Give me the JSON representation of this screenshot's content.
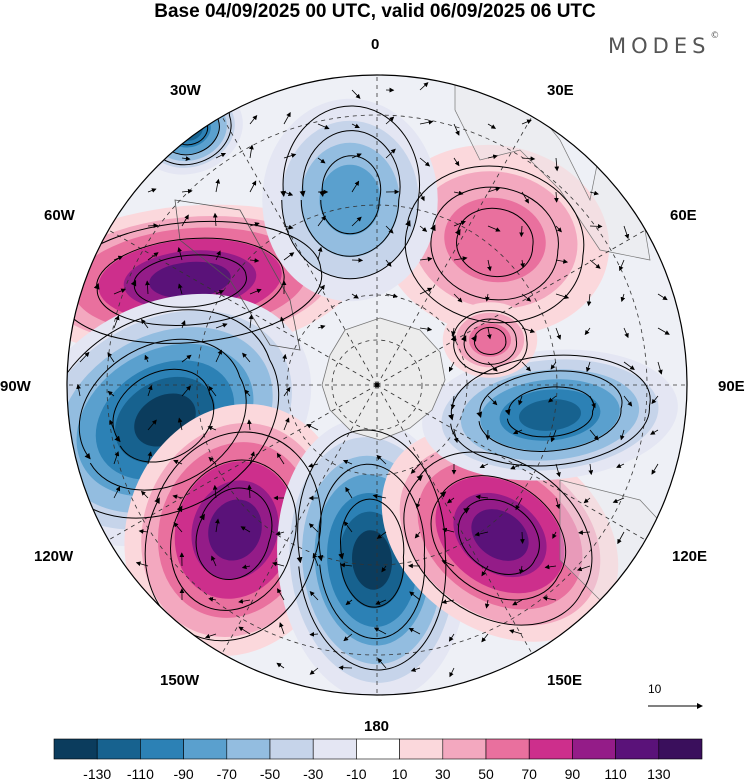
{
  "title": "Base 04/09/2025 00 UTC, valid 06/09/2025 06 UTC",
  "brand": {
    "name": "MODES",
    "mark": "©"
  },
  "longitude_labels": {
    "lon_0": "0",
    "lon_30e": "30E",
    "lon_60e": "60E",
    "lon_90e": "90E",
    "lon_120e": "120E",
    "lon_150e": "150E",
    "lon_180": "180",
    "lon_150w": "150W",
    "lon_120w": "120W",
    "lon_90w": "90W",
    "lon_60w": "60W",
    "lon_30w": "30W"
  },
  "vector_reference": {
    "label": "10"
  },
  "colorbar": {
    "labels": [
      "-130",
      "-110",
      "-90",
      "-70",
      "-50",
      "-30",
      "-10",
      "10",
      "30",
      "50",
      "70",
      "90",
      "110",
      "130"
    ],
    "colors": [
      "#0b3c5d",
      "#17628f",
      "#2c81b5",
      "#5aa0ce",
      "#93bde0",
      "#c6d4ea",
      "#e4e6f3",
      "#ffffff",
      "#fbd8dc",
      "#f3a8bf",
      "#e9709e",
      "#cd2f8c",
      "#941c88",
      "#5a1279",
      "#3a0f5c"
    ]
  },
  "anomaly_centers": [
    {
      "kind": "neg",
      "level": "-90",
      "color": "#17628f"
    },
    {
      "kind": "pos",
      "level": "110",
      "color": "#5a1279"
    },
    {
      "kind": "neg",
      "level": "-110",
      "color": "#0b3c5d"
    },
    {
      "kind": "pos",
      "level": "110",
      "color": "#5a1279"
    },
    {
      "kind": "neg",
      "level": "-110",
      "color": "#0b3c5d"
    },
    {
      "kind": "pos",
      "level": "110",
      "color": "#5a1279"
    },
    {
      "kind": "neg",
      "level": "-90",
      "color": "#17628f"
    },
    {
      "kind": "pos",
      "level": "50",
      "color": "#e9709e"
    },
    {
      "kind": "pos",
      "level": "50",
      "color": "#e9709e"
    },
    {
      "kind": "neg",
      "level": "-50",
      "color": "#5aa0ce"
    }
  ]
}
